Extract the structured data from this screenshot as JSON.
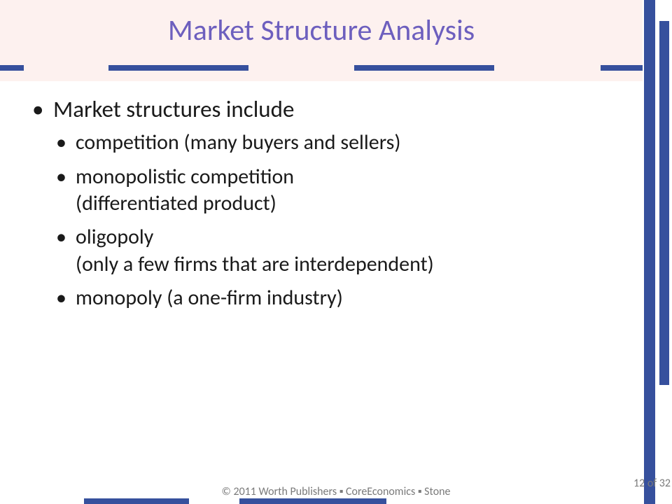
{
  "colors": {
    "header_bg": "#fdf1ef",
    "accent_bar": "#36509d",
    "title_color": "#6d5fbe",
    "body_text": "#1a1a1a",
    "footer_text": "#7a7a7a",
    "background": "#ffffff"
  },
  "typography": {
    "title_fontsize_pt": 32,
    "level1_fontsize_pt": 25,
    "level2_fontsize_pt": 22,
    "footer_fontsize_pt": 12,
    "font_family": "Calibri"
  },
  "title": "Market Structure Analysis",
  "body": {
    "heading": "Market structures include",
    "items": [
      "competition (many buyers and sellers)",
      "monopolistic competition\n(differentiated product)",
      "oligopoly\n(only a few firms that are interdependent)",
      "monopoly (a one-firm industry)"
    ]
  },
  "footer": {
    "copyright": "© 2011 Worth Publishers ▪ CoreEconomics ▪ Stone",
    "page_label": "12 of 32"
  }
}
